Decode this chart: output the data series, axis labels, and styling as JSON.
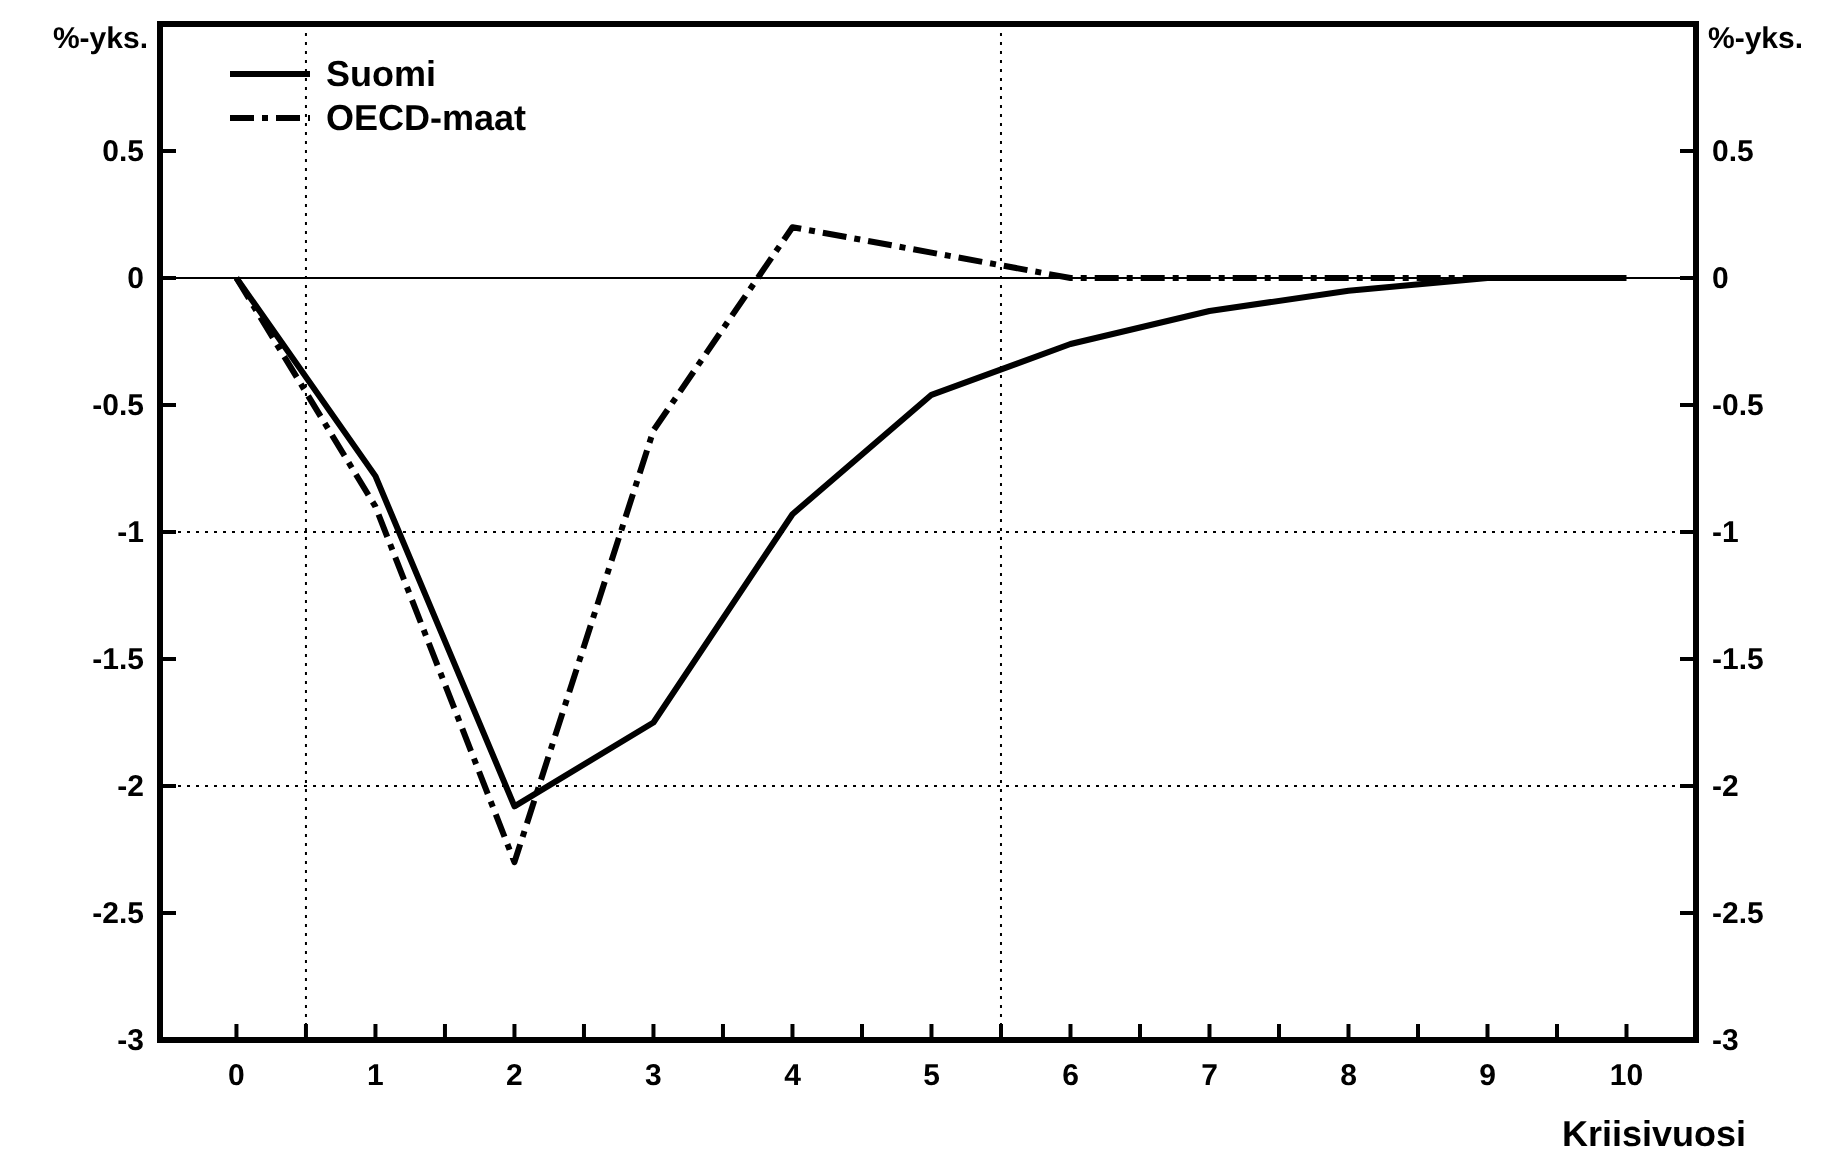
{
  "chart_data": {
    "type": "line",
    "xlabel": "Kriisivuosi",
    "ylabel": "%-yks.",
    "y2label": "%-yks.",
    "x": [
      0,
      1,
      2,
      3,
      4,
      5,
      6,
      7,
      8,
      9,
      10
    ],
    "series": [
      {
        "name": "Suomi",
        "color": "#000000",
        "line_style": "solid",
        "values": [
          0,
          -0.78,
          -2.08,
          -1.75,
          -0.93,
          -0.46,
          -0.26,
          -0.13,
          -0.05,
          0,
          0
        ]
      },
      {
        "name": "OECD-maat",
        "color": "#000000",
        "line_style": "dashed",
        "values": [
          0,
          -0.9,
          -2.3,
          -0.6,
          0.2,
          0.1,
          0,
          0,
          0,
          0,
          0
        ]
      }
    ],
    "xlim": [
      -0.55,
      10.5
    ],
    "xticks": [
      0,
      1,
      2,
      3,
      4,
      5,
      6,
      7,
      8,
      9,
      10,
      {
        "value": 0.5,
        "label": null
      },
      {
        "value": 1.5,
        "label": null
      },
      {
        "value": 2.5,
        "label": null
      },
      {
        "value": 3.5,
        "label": null
      },
      {
        "value": 4.5,
        "label": null
      },
      {
        "value": 5.5,
        "label": null
      },
      {
        "value": 6.5,
        "label": null
      },
      {
        "value": 7.5,
        "label": null
      },
      {
        "value": 8.5,
        "label": null
      },
      {
        "value": 9.5,
        "label": null
      }
    ],
    "ylim": [
      -3,
      1
    ],
    "yticks": [
      0.5,
      0,
      -0.5,
      -1,
      -1.5,
      -2,
      -2.5,
      -3
    ],
    "y2lim": [
      -3,
      1
    ],
    "y2ticks": [
      0.5,
      0,
      -0.5,
      -1,
      -1.5,
      -2,
      -2.5,
      -3
    ],
    "ref_lines": [
      {
        "axis": "y",
        "value": 0,
        "line_style": "solid"
      },
      {
        "axis": "y",
        "value": -1,
        "line_style": "dotted"
      },
      {
        "axis": "y",
        "value": -2,
        "line_style": "dotted"
      },
      {
        "axis": "x",
        "value": 0.5,
        "line_style": "dotted"
      },
      {
        "axis": "x",
        "value": 5.5,
        "line_style": "dotted"
      }
    ],
    "legend": "top left",
    "marker": "none"
  }
}
